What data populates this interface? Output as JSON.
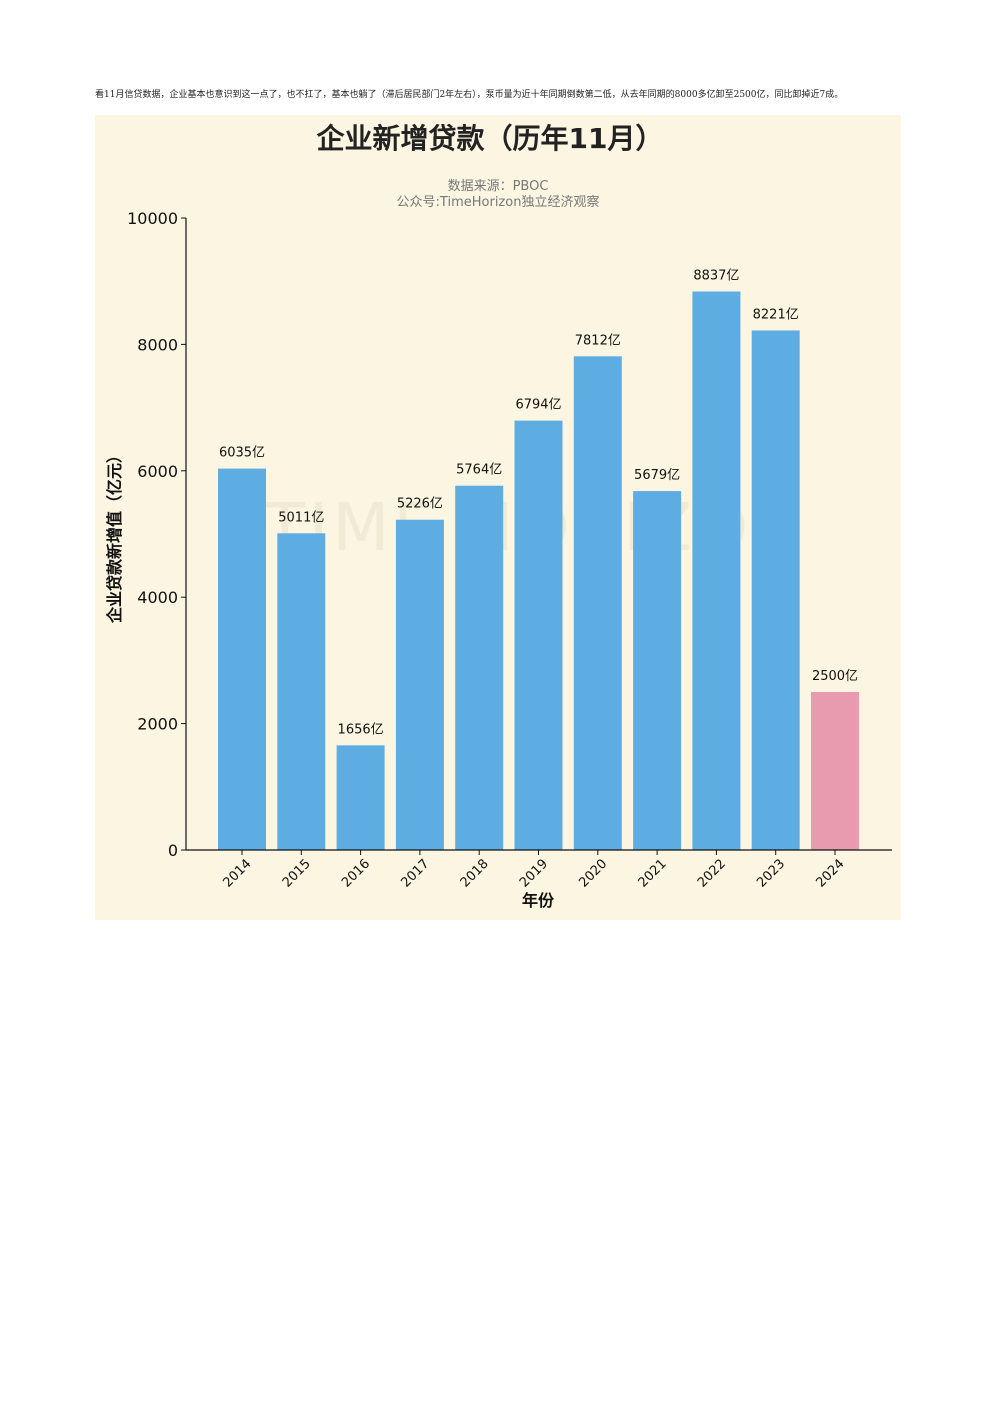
{
  "intro_text": "看11月信贷数据，企业基本也意识到这一点了，也不扛了，基本也躺了（滞后居民部门2年左右），泵币量为近十年同期倒数第二低，从去年同期的8000多亿卸至2500亿，同比卸掉近7成。",
  "chart_data": {
    "type": "bar",
    "title": "企业新增贷款（历年11月）",
    "subtitle": [
      "数据来源：PBOC",
      "公众号:TimeHorizon独立经济观察"
    ],
    "watermark": "TIME HORIZON",
    "xlabel": "年份",
    "ylabel": "企业贷款新增值（亿元）",
    "ylim": [
      0,
      10000
    ],
    "yticks": [
      0,
      2000,
      4000,
      6000,
      8000,
      10000
    ],
    "categories": [
      "2014",
      "2015",
      "2016",
      "2017",
      "2018",
      "2019",
      "2020",
      "2021",
      "2022",
      "2023",
      "2024"
    ],
    "values": [
      6035,
      5011,
      1656,
      5226,
      5764,
      6794,
      7812,
      5679,
      8837,
      8221,
      2500
    ],
    "labels": [
      "6035亿",
      "5011亿",
      "1656亿",
      "5226亿",
      "5764亿",
      "6794亿",
      "7812亿",
      "5679亿",
      "8837亿",
      "8221亿",
      "2500亿"
    ],
    "colors": [
      "#5dade2",
      "#5dade2",
      "#5dade2",
      "#5dade2",
      "#5dade2",
      "#5dade2",
      "#5dade2",
      "#5dade2",
      "#5dade2",
      "#5dade2",
      "#e89aaf"
    ],
    "grid": false,
    "legend": "none"
  }
}
